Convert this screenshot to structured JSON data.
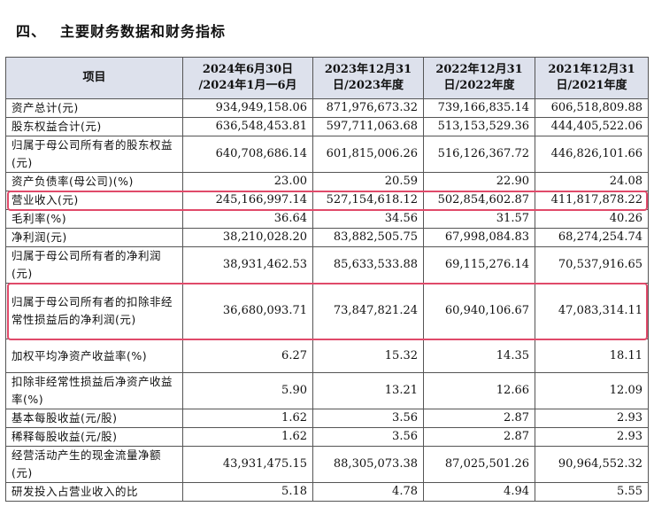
{
  "section": {
    "number": "四、",
    "title": "主要财务数据和财务指标"
  },
  "table": {
    "headers": [
      "项目",
      "2024年6月30日 /2024年1月一6月",
      "2023年12月31日/2023年度",
      "2022年12月31日/2022年度",
      "2021年12月31日/2021年度"
    ],
    "rows": [
      {
        "label": "资产总计(元)",
        "values": [
          "934,949,158.06",
          "871,976,673.32",
          "739,166,835.14",
          "606,518,809.88"
        ]
      },
      {
        "label": "股东权益合计(元)",
        "values": [
          "636,548,453.81",
          "597,711,063.68",
          "513,153,529.36",
          "444,405,522.06"
        ]
      },
      {
        "label": "归属于母公司所有者的股东权益(元)",
        "values": [
          "640,708,686.14",
          "601,815,006.26",
          "516,126,367.72",
          "446,826,101.66"
        ]
      },
      {
        "label": "资产负债率(母公司)(%)",
        "values": [
          "23.00",
          "20.59",
          "22.90",
          "24.08"
        ]
      },
      {
        "label": "营业收入(元)",
        "values": [
          "245,166,997.14",
          "527,154,618.12",
          "502,854,602.87",
          "411,817,878.22"
        ]
      },
      {
        "label": "毛利率(%)",
        "values": [
          "36.64",
          "34.56",
          "31.57",
          "40.26"
        ]
      },
      {
        "label": "净利润(元)",
        "values": [
          "38,210,028.20",
          "83,882,505.75",
          "67,998,084.83",
          "68,274,254.74"
        ]
      },
      {
        "label": "归属于母公司所有者的净利润(元)",
        "values": [
          "38,931,462.53",
          "85,633,533.88",
          "69,115,276.14",
          "70,537,916.65"
        ]
      },
      {
        "label": "归属于母公司所有者的扣除非经常性损益后的净利润(元)",
        "values": [
          "36,680,093.71",
          "73,847,821.24",
          "60,940,106.67",
          "47,083,314.11"
        ]
      },
      {
        "label": "加权平均净资产收益率(%)",
        "values": [
          "6.27",
          "15.32",
          "14.35",
          "18.11"
        ]
      },
      {
        "label": "扣除非经常性损益后净资产收益率(%)",
        "values": [
          "5.90",
          "13.21",
          "12.66",
          "12.09"
        ]
      },
      {
        "label": "基本每股收益(元/股)",
        "values": [
          "1.62",
          "3.56",
          "2.87",
          "2.93"
        ]
      },
      {
        "label": "稀释每股收益(元/股)",
        "values": [
          "1.62",
          "3.56",
          "2.87",
          "2.93"
        ]
      },
      {
        "label": "经营活动产生的现金流量净额(元)",
        "values": [
          "43,931,475.15",
          "88,305,073.38",
          "87,025,501.26",
          "90,964,552.32"
        ]
      },
      {
        "label": "研发投入占营业收入的比",
        "values": [
          "5.18",
          "4.78",
          "4.94",
          "5.55"
        ]
      }
    ]
  },
  "highlight_color": "#e04a6a",
  "highlighted_rows": [
    "营业收入(元)",
    "归属于母公司所有者的扣除非经常性损益后的净利润(元)"
  ]
}
